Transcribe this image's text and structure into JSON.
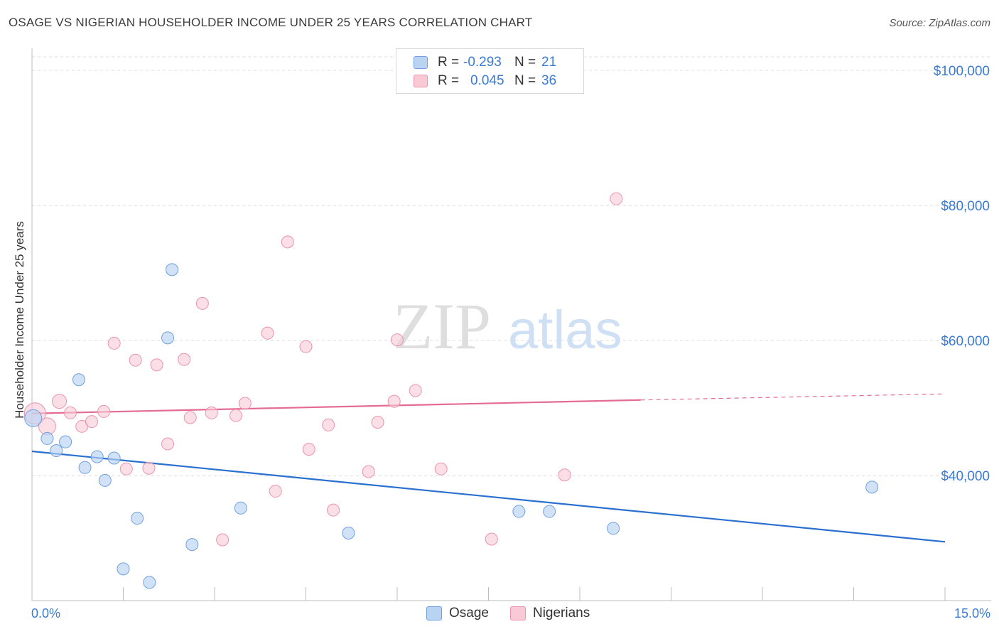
{
  "title": "OSAGE VS NIGERIAN HOUSEHOLDER INCOME UNDER 25 YEARS CORRELATION CHART",
  "source": "Source: ZipAtlas.com",
  "watermark": {
    "zip": "ZIP",
    "atlas": "atlas"
  },
  "legend": {
    "rows": [
      {
        "r_label": "R =",
        "r_value": "-0.293",
        "n_label": "N =",
        "n_value": "21"
      },
      {
        "r_label": "R =",
        "r_value": "0.045",
        "n_label": "N =",
        "n_value": "36"
      }
    ]
  },
  "bottom_legend": {
    "series1": "Osage",
    "series2": "Nigerians"
  },
  "colors": {
    "osage_fill": "#b9d3f3",
    "osage_stroke": "#6fa0e0",
    "osage_line": "#2a70d0",
    "nigerian_fill": "#f9c9d6",
    "nigerian_stroke": "#ec93ae",
    "nigerian_line": "#e46c94",
    "axis_text": "#3a7bd5",
    "grid": "#dcdcdc"
  },
  "chart_data": {
    "type": "scatter",
    "title": "OSAGE VS NIGERIAN HOUSEHOLDER INCOME UNDER 25 YEARS CORRELATION CHART",
    "xlabel": "",
    "ylabel": "Householder Income Under 25 years",
    "xlim": [
      0,
      15
    ],
    "ylim": [
      21500,
      102000
    ],
    "x_tick_labels": [
      "0.0%",
      "15.0%"
    ],
    "y_ticks": [
      40000,
      60000,
      80000,
      100000
    ],
    "y_tick_labels": [
      "$40,000",
      "$60,000",
      "$80,000",
      "$100,000"
    ],
    "grid": true,
    "legend_position": "top-center",
    "series": [
      {
        "name": "Osage",
        "points": [
          [
            0.02,
            48500
          ],
          [
            0.25,
            45500
          ],
          [
            0.4,
            43700
          ],
          [
            0.55,
            45000
          ],
          [
            0.77,
            54200
          ],
          [
            0.87,
            41200
          ],
          [
            1.07,
            42800
          ],
          [
            1.2,
            39300
          ],
          [
            1.35,
            42600
          ],
          [
            1.5,
            26200
          ],
          [
            1.73,
            33700
          ],
          [
            1.93,
            24200
          ],
          [
            2.23,
            60400
          ],
          [
            2.3,
            70500
          ],
          [
            2.63,
            29800
          ],
          [
            3.43,
            35200
          ],
          [
            5.2,
            31500
          ],
          [
            8.0,
            34700
          ],
          [
            8.5,
            34700
          ],
          [
            9.55,
            32200
          ],
          [
            13.8,
            38300
          ]
        ],
        "trend": {
          "x": [
            0,
            15
          ],
          "y": [
            43600,
            30200
          ],
          "style": "solid"
        }
      },
      {
        "name": "Nigerians",
        "points": [
          [
            0.05,
            49200
          ],
          [
            0.25,
            47300
          ],
          [
            0.45,
            51000
          ],
          [
            0.63,
            49300
          ],
          [
            0.82,
            47300
          ],
          [
            0.98,
            48000
          ],
          [
            1.18,
            49500
          ],
          [
            1.35,
            59600
          ],
          [
            1.55,
            41000
          ],
          [
            1.7,
            57100
          ],
          [
            1.92,
            41100
          ],
          [
            2.05,
            56400
          ],
          [
            2.23,
            44700
          ],
          [
            2.5,
            57200
          ],
          [
            2.6,
            48600
          ],
          [
            2.8,
            65500
          ],
          [
            2.95,
            49300
          ],
          [
            3.13,
            30500
          ],
          [
            3.35,
            48900
          ],
          [
            3.5,
            50700
          ],
          [
            3.87,
            61100
          ],
          [
            4.0,
            37700
          ],
          [
            4.2,
            74600
          ],
          [
            4.5,
            59100
          ],
          [
            4.55,
            43900
          ],
          [
            4.87,
            47500
          ],
          [
            4.95,
            34900
          ],
          [
            5.53,
            40600
          ],
          [
            5.68,
            47900
          ],
          [
            5.95,
            51000
          ],
          [
            6.0,
            60100
          ],
          [
            6.3,
            52600
          ],
          [
            6.72,
            41000
          ],
          [
            7.55,
            30600
          ],
          [
            8.75,
            40100
          ],
          [
            9.6,
            81000
          ]
        ],
        "trend": {
          "x": [
            0,
            10,
            15
          ],
          "y": [
            49200,
            51200,
            52100
          ],
          "solid_until": 10
        }
      }
    ]
  },
  "axis_labels": {
    "y_title": "Householder Income Under 25 years",
    "x_min": "0.0%",
    "x_max": "15.0%"
  }
}
